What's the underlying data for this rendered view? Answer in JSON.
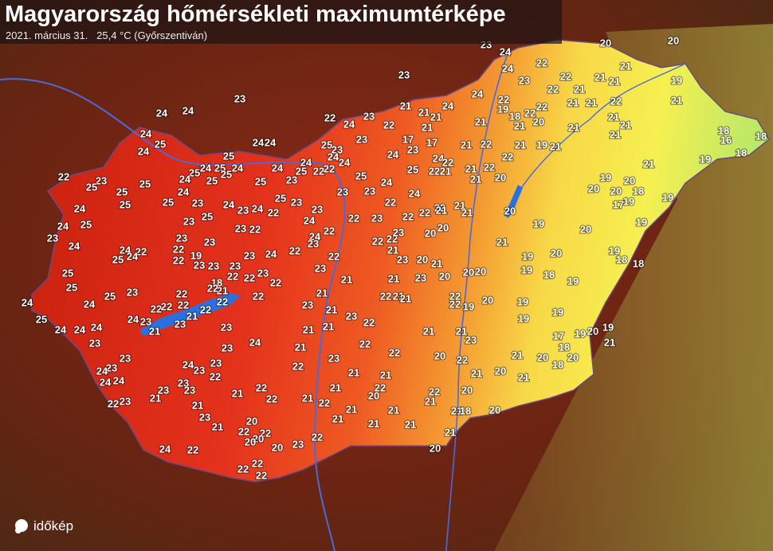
{
  "header": {
    "title": "Magyarország hőmérsékleti maximumtérképe",
    "subtitle": "2021. március 31.   25,4 °C (Győrszentiván)"
  },
  "logo": "időkép",
  "labels": [
    23,
    24,
    20,
    20,
    23,
    24,
    22,
    23,
    22,
    21,
    21,
    21,
    22,
    21,
    22,
    19,
    21,
    24,
    22,
    19,
    24,
    21,
    21,
    21,
    23,
    24,
    22,
    22,
    21,
    21,
    18,
    22,
    20,
    21,
    21,
    21,
    22,
    21,
    21,
    21,
    21,
    18,
    16,
    18,
    18,
    19,
    24,
    24,
    23,
    24,
    25,
    24,
    24,
    24,
    25,
    23,
    23,
    17,
    17,
    21,
    22,
    21,
    19,
    21,
    24,
    23,
    25,
    25,
    24,
    24,
    25,
    24,
    24,
    22,
    24,
    24,
    24,
    22,
    21,
    22,
    22,
    21,
    22,
    23,
    25,
    25,
    24,
    25,
    25,
    25,
    23,
    25,
    22,
    25,
    24,
    25,
    22,
    21,
    21,
    20,
    19,
    20,
    20,
    20,
    18,
    19,
    25,
    25,
    25,
    24,
    23,
    24,
    23,
    24,
    22,
    25,
    23,
    23,
    23,
    23,
    22,
    24,
    22,
    21,
    21,
    20,
    17,
    19,
    24,
    23,
    25,
    23,
    22,
    24,
    22,
    23,
    22,
    22,
    21,
    20,
    20,
    19,
    20,
    19,
    24,
    25,
    23,
    24,
    24,
    22,
    23,
    23,
    22,
    24,
    22,
    22,
    22,
    23,
    21,
    25,
    24,
    22,
    19,
    23,
    23,
    23,
    23,
    24,
    22,
    23,
    22,
    21,
    23,
    20,
    21,
    19,
    20,
    19,
    18,
    18,
    25,
    25,
    18,
    21,
    22,
    22,
    23,
    22,
    23,
    21,
    21,
    23,
    20,
    20,
    20,
    19,
    18,
    19,
    24,
    24,
    25,
    23,
    22,
    22,
    22,
    22,
    23,
    21,
    22,
    21,
    21,
    22,
    22,
    19,
    20,
    19,
    19,
    25,
    24,
    23,
    22,
    22,
    22,
    22,
    21,
    23,
    21,
    24,
    24,
    24,
    23,
    23,
    21,
    21,
    21,
    23,
    22,
    21,
    21,
    23,
    19,
    17,
    20,
    19,
    19,
    21,
    18,
    23,
    23,
    23,
    24,
    21,
    23,
    22,
    22,
    20,
    22,
    21,
    20,
    20,
    18,
    23,
    24,
    24,
    23,
    22,
    24,
    24,
    23,
    22,
    21,
    21,
    22,
    21,
    20,
    21,
    23,
    23,
    21,
    22,
    21,
    21,
    22,
    20,
    22,
    20,
    22,
    23,
    21,
    21,
    22,
    23,
    20,
    21,
    21,
    21,
    21,
    21,
    21,
    18,
    20,
    21,
    21,
    22,
    22,
    20,
    20,
    22,
    23,
    20,
    21,
    24,
    22,
    20,
    22,
    22,
    22
  ]
}
